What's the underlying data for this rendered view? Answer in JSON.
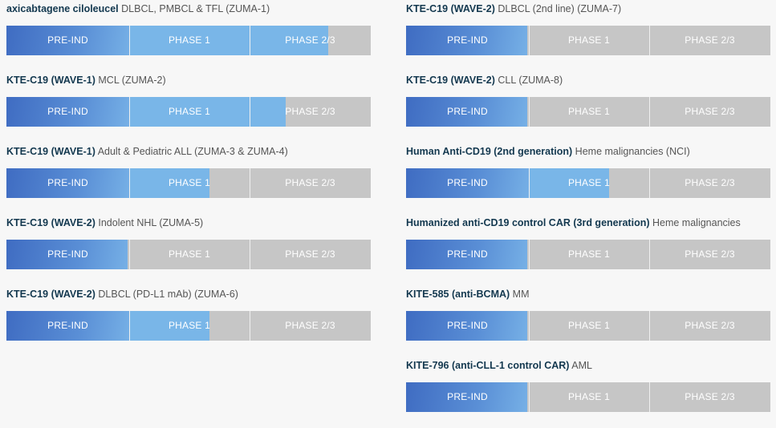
{
  "phase_labels": [
    "PRE-IND",
    "PHASE 1",
    "PHASE 2/3"
  ],
  "colors": {
    "pre_ind_fill": "#3f6cc2",
    "progress_fill": "#79b6e8",
    "track": "#c6c6c6",
    "program_text": "#13384f",
    "indication_text": "#555555"
  },
  "chart_data": {
    "type": "bar",
    "value_meaning": "progress across phases, 0-3 (1 segment per phase)",
    "xlim": [
      0,
      3
    ],
    "left_column": [
      {
        "program": "axicabtagene ciloleucel",
        "indication": "DLBCL, PMBCL & TFL (ZUMA-1)",
        "progress": 2.65
      },
      {
        "program": "KTE-C19 (WAVE-1)",
        "indication": "MCL (ZUMA-2)",
        "progress": 2.3
      },
      {
        "program": "KTE-C19 (WAVE-1)",
        "indication": "Adult & Pediatric ALL (ZUMA-3 & ZUMA-4)",
        "progress": 1.67
      },
      {
        "program": "KTE-C19 (WAVE-2)",
        "indication": "Indolent NHL (ZUMA-5)",
        "progress": 1.0
      },
      {
        "program": "KTE-C19 (WAVE-2)",
        "indication": "DLBCL (PD-L1 mAb) (ZUMA-6)",
        "progress": 1.67
      }
    ],
    "right_column": [
      {
        "program": "KTE-C19 (WAVE-2)",
        "indication": "DLBCL (2nd line) (ZUMA-7)",
        "progress": 1.0
      },
      {
        "program": "KTE-C19 (WAVE-2)",
        "indication": "CLL (ZUMA-8)",
        "progress": 1.0
      },
      {
        "program": "Human Anti-CD19 (2nd generation)",
        "indication": "Heme malignancies (NCI)",
        "progress": 1.67
      },
      {
        "program": "Humanized anti-CD19 control CAR (3rd generation)",
        "indication": "Heme malignancies",
        "progress": 1.0
      },
      {
        "program": "KITE-585 (anti-BCMA)",
        "indication": "MM",
        "progress": 1.0
      },
      {
        "program": "KITE-796 (anti-CLL-1 control CAR)",
        "indication": "AML",
        "progress": 1.0
      }
    ]
  }
}
